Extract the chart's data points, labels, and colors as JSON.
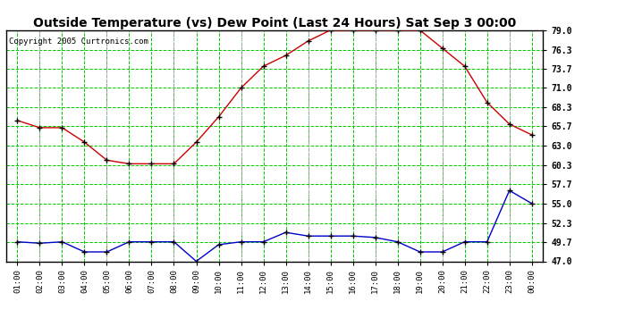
{
  "title": "Outside Temperature (vs) Dew Point (Last 24 Hours) Sat Sep 3 00:00",
  "copyright": "Copyright 2005 Curtronics.com",
  "x_labels": [
    "01:00",
    "02:00",
    "03:00",
    "04:00",
    "05:00",
    "06:00",
    "07:00",
    "08:00",
    "09:00",
    "10:00",
    "11:00",
    "12:00",
    "13:00",
    "14:00",
    "15:00",
    "16:00",
    "17:00",
    "18:00",
    "19:00",
    "20:00",
    "21:00",
    "22:00",
    "23:00",
    "00:00"
  ],
  "temp_data": [
    66.5,
    65.5,
    65.5,
    63.5,
    61.0,
    60.5,
    60.5,
    60.5,
    63.5,
    67.0,
    71.0,
    74.0,
    75.5,
    77.5,
    79.0,
    79.0,
    79.0,
    79.0,
    79.0,
    76.5,
    74.0,
    69.0,
    66.0,
    64.5
  ],
  "dew_data": [
    49.7,
    49.5,
    49.7,
    48.3,
    48.3,
    49.7,
    49.7,
    49.7,
    47.0,
    49.3,
    49.7,
    49.7,
    51.0,
    50.5,
    50.5,
    50.5,
    50.3,
    49.7,
    48.3,
    48.3,
    49.7,
    49.7,
    56.8,
    55.0
  ],
  "temp_color": "#cc0000",
  "dew_color": "#0000cc",
  "bg_color": "#ffffff",
  "grid_green_color": "#00cc00",
  "grid_gray_color": "#aaaaaa",
  "ylim": [
    47.0,
    79.0
  ],
  "yticks": [
    47.0,
    49.7,
    52.3,
    55.0,
    57.7,
    60.3,
    63.0,
    65.7,
    68.3,
    71.0,
    73.7,
    76.3,
    79.0
  ],
  "gray_vline_positions": [
    1,
    4,
    7,
    10,
    13,
    16,
    19,
    22
  ],
  "title_fontsize": 10,
  "copyright_fontsize": 6.5,
  "marker": "+",
  "markersize": 4,
  "markeredgewidth": 1.0,
  "linewidth": 1.0
}
